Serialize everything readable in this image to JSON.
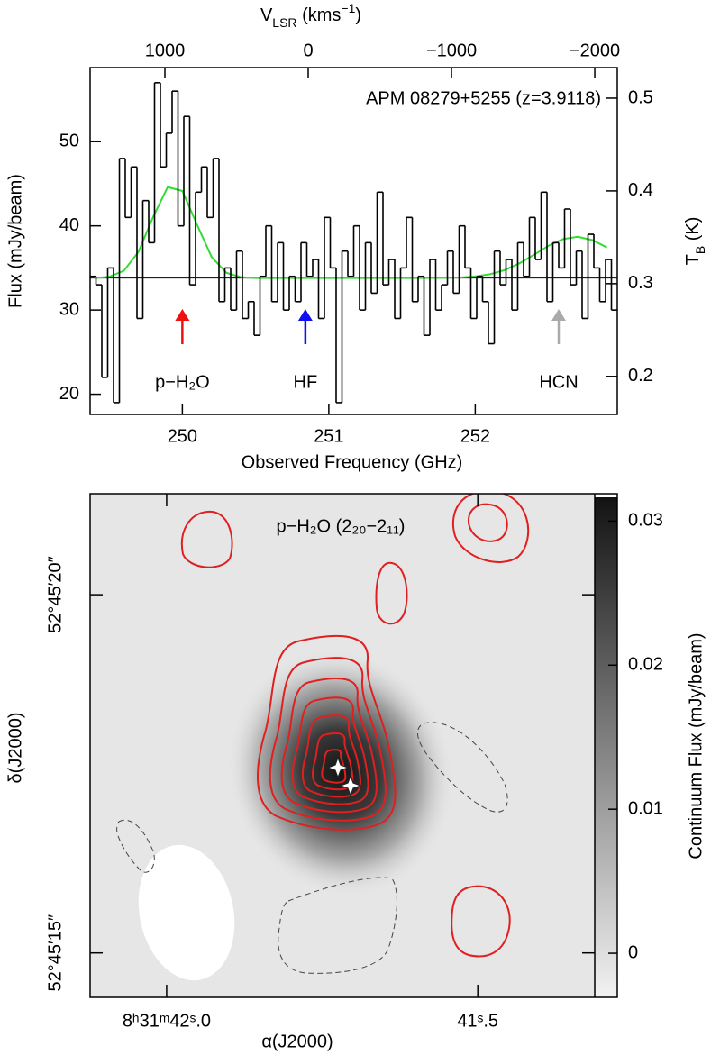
{
  "chart_data": [
    {
      "type": "step",
      "title": "APM 08279+5255 (z=3.9118)",
      "xlabel": "Observed Frequency (GHz)",
      "ylabel": "Flux (mJy/beam)",
      "y2label": [
        {
          "text": "T"
        },
        {
          "text": "B",
          "shift": "sub"
        },
        {
          "text": " (K)"
        }
      ],
      "x2label": [
        {
          "text": "V"
        },
        {
          "text": "LSR",
          "shift": "sub"
        },
        {
          "text": " (kms"
        },
        {
          "text": "−1",
          "shift": "sup"
        },
        {
          "text": ")"
        }
      ],
      "color": "#000000",
      "x": [
        249.39,
        249.43,
        249.47,
        249.51,
        249.55,
        249.59,
        249.63,
        249.67,
        249.71,
        249.75,
        249.79,
        249.83,
        249.87,
        249.91,
        249.95,
        249.99,
        250.03,
        250.07,
        250.11,
        250.15,
        250.19,
        250.23,
        250.27,
        250.31,
        250.35,
        250.39,
        250.43,
        250.47,
        250.51,
        250.55,
        250.59,
        250.63,
        250.67,
        250.71,
        250.75,
        250.79,
        250.83,
        250.87,
        250.91,
        250.95,
        250.99,
        251.03,
        251.07,
        251.11,
        251.15,
        251.19,
        251.23,
        251.27,
        251.31,
        251.35,
        251.39,
        251.43,
        251.47,
        251.51,
        251.55,
        251.59,
        251.63,
        251.67,
        251.71,
        251.75,
        251.79,
        251.83,
        251.87,
        251.91,
        251.95,
        251.99,
        252.03,
        252.07,
        252.11,
        252.15,
        252.19,
        252.23,
        252.27,
        252.31,
        252.35,
        252.39,
        252.43,
        252.47,
        252.51,
        252.55,
        252.59,
        252.63,
        252.67,
        252.71,
        252.75,
        252.79,
        252.83,
        252.87,
        252.91,
        252.95
      ],
      "values": [
        34,
        33,
        22,
        35,
        19,
        48,
        41,
        47,
        29,
        43,
        38,
        57,
        47,
        51,
        56,
        40,
        53,
        33,
        44,
        47,
        41,
        48,
        31,
        35,
        30,
        37,
        29,
        31,
        27,
        34,
        40,
        31,
        38,
        30,
        34,
        31,
        38,
        34,
        36,
        29,
        41,
        35,
        19,
        37,
        34,
        40,
        30,
        38,
        32,
        44,
        33,
        36,
        29,
        35,
        41,
        31,
        34,
        27,
        36,
        30,
        33,
        37,
        32,
        40,
        35,
        29,
        34,
        31,
        26,
        37,
        33,
        36,
        30,
        38,
        34,
        41,
        36,
        44,
        31,
        38,
        35,
        42,
        33,
        37,
        29,
        39,
        35,
        31,
        36,
        30
      ],
      "fit": {
        "color": "#33dd33",
        "x": [
          249.4,
          249.5,
          249.6,
          249.7,
          249.8,
          249.9,
          250.0,
          250.1,
          250.2,
          250.3,
          250.4,
          250.5,
          250.6,
          250.7,
          250.8,
          250.9,
          251.0,
          251.1,
          251.2,
          251.3,
          251.4,
          251.5,
          251.6,
          251.7,
          251.8,
          251.9,
          252.0,
          252.1,
          252.2,
          252.3,
          252.4,
          252.5,
          252.6,
          252.7,
          252.8,
          252.9
        ],
        "values": [
          33.8,
          33.95,
          34.66,
          36.91,
          41.04,
          44.61,
          44.14,
          40.14,
          36.29,
          34.43,
          33.9,
          33.8,
          33.8,
          33.8,
          33.8,
          33.8,
          33.8,
          33.8,
          33.8,
          33.8,
          33.8,
          33.8,
          33.8,
          33.81,
          33.82,
          33.87,
          33.99,
          34.25,
          34.74,
          35.53,
          36.55,
          37.63,
          38.43,
          38.7,
          38.31,
          37.43
        ]
      },
      "baseline": 33.8,
      "baseline_color": "#000000",
      "annotations": [
        {
          "text": "p−H₂O",
          "x": 250.0,
          "color": "#ee1111"
        },
        {
          "text": "HF",
          "x": 250.84,
          "color": "#1111ee"
        },
        {
          "text": "HCN",
          "x": 252.57,
          "color": "#aaaaaa"
        }
      ],
      "xlim": [
        249.37,
        252.97
      ],
      "xticks": [
        250,
        251,
        252
      ],
      "ylim": [
        17.6,
        58.8
      ],
      "yticks": [
        20,
        30,
        40,
        50
      ],
      "y2lim": [
        0.159,
        0.533
      ],
      "y2ticks": [
        0.2,
        0.3,
        0.4,
        0.5
      ],
      "x2lim": [
        1522,
        -2157
      ],
      "x2ticks": [
        1000,
        0,
        {
          "value": -1000,
          "label": "−1000"
        },
        {
          "value": -2000,
          "label": "−2000"
        }
      ]
    },
    {
      "type": "image",
      "title": "p−H₂O (2₂₀−2₁₁)",
      "contour_color": "#e02020",
      "xlabel": "α(J2000)",
      "ylabel": "δ(J2000)",
      "xlim": [
        42.123,
        41.312
      ],
      "xticks": [
        {
          "value": 42.0,
          "label": "8ʰ31ᵐ42ˢ.0"
        },
        {
          "value": 41.5,
          "label": "41ˢ.5"
        }
      ],
      "ylim": [
        14.38,
        21.41
      ],
      "yticks": [
        {
          "value": 15,
          "label": "52°45′15″"
        },
        {
          "value": 20,
          "label": "52°45′20″"
        }
      ],
      "colorbar": {
        "label": "Continuum Flux (mJy/beam)",
        "lim": [
          -0.00306,
          0.0319
        ],
        "ticks": [
          0,
          0.01,
          0.02,
          0.03
        ]
      }
    }
  ]
}
